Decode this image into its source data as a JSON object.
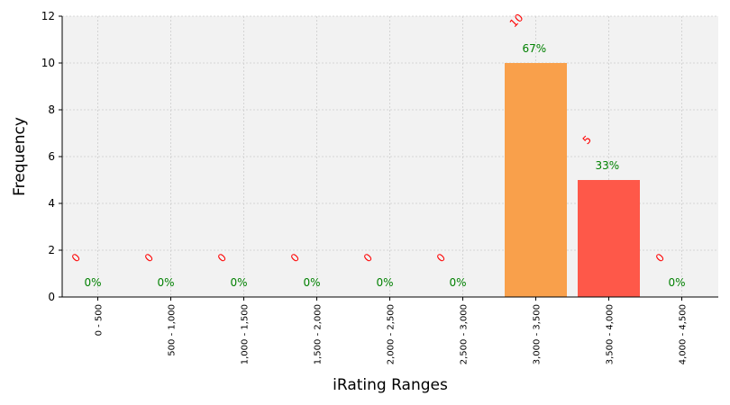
{
  "chart_data": {
    "type": "bar",
    "xlabel": "iRating Ranges",
    "ylabel": "Frequency",
    "ylim": [
      0,
      12
    ],
    "yticks": [
      "0",
      "2",
      "4",
      "6",
      "8",
      "10",
      "12"
    ],
    "grid": true,
    "categories": [
      "0 - 500",
      "500 - 1,000",
      "1,000 - 1,500",
      "1,500 - 2,000",
      "2,000 - 2,500",
      "2,500 - 3,000",
      "3,000 - 3,500",
      "3,500 - 4,000",
      "4,000 - 4,500"
    ],
    "values": [
      0,
      0,
      0,
      0,
      0,
      0,
      10,
      5,
      0
    ],
    "count_labels": [
      "0",
      "0",
      "0",
      "0",
      "0",
      "0",
      "10",
      "5",
      "0"
    ],
    "percent_labels": [
      "0%",
      "0%",
      "0%",
      "0%",
      "0%",
      "0%",
      "67%",
      "33%",
      "0%"
    ],
    "bar_colors": [
      "#f9a04b",
      "#f9a04b",
      "#f9a04b",
      "#f9a04b",
      "#f9a04b",
      "#f9a04b",
      "#f9a04b",
      "#fe5849",
      "#f9a04b"
    ],
    "count_label_color": "#ff0000",
    "percent_label_color": "#008000",
    "plot_background": "#f2f2f2",
    "grid_color": "#cccccc"
  }
}
